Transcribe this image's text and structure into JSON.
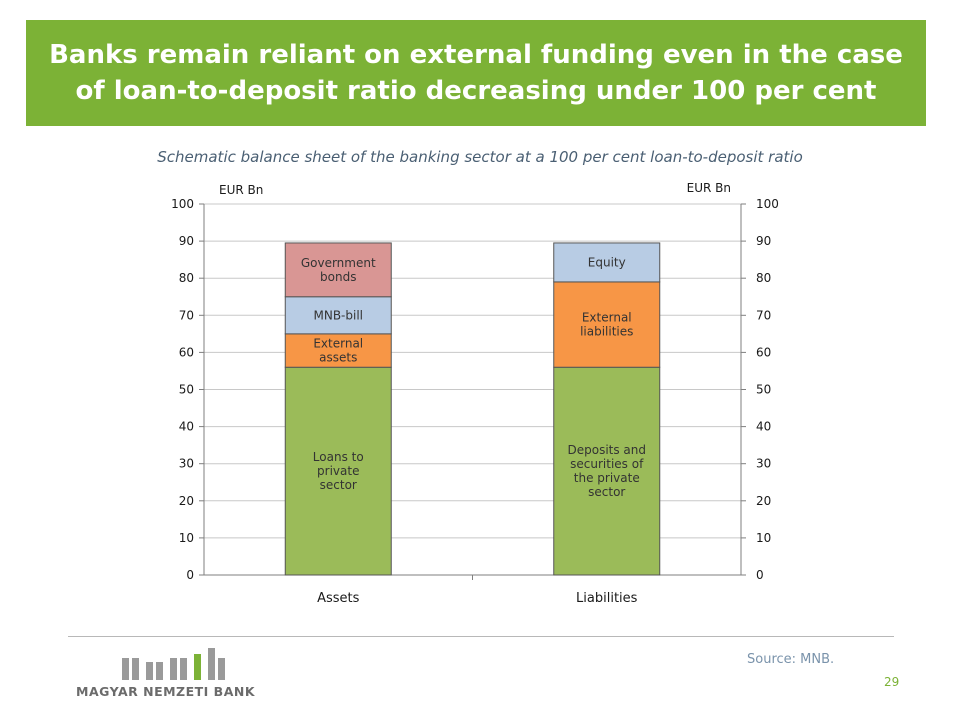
{
  "header": {
    "title": "Banks remain reliant on external funding even in the case of loan-to-deposit ratio decreasing under 100 per cent"
  },
  "subtitle": "Schematic balance sheet of the banking sector at a 100 per cent loan-to-deposit ratio",
  "chart_data": {
    "type": "bar",
    "stacked": true,
    "categories": [
      "Assets",
      "Liabilities"
    ],
    "left_axis_unit": "EUR Bn",
    "right_axis_unit": "EUR Bn",
    "ylim": [
      0,
      100
    ],
    "yticks": [
      0,
      10,
      20,
      30,
      40,
      50,
      60,
      70,
      80,
      90,
      100
    ],
    "gridlines": true,
    "stacks": [
      {
        "category": "Assets",
        "segments": [
          {
            "label": "Loans to private sector",
            "lines": [
              "Loans to",
              "private",
              "sector"
            ],
            "value": 56,
            "color": "#9bbb59"
          },
          {
            "label": "External assets",
            "lines": [
              "External",
              "assets"
            ],
            "value": 9,
            "color": "#f79646"
          },
          {
            "label": "MNB-bill",
            "lines": [
              "MNB-bill"
            ],
            "value": 10,
            "color": "#b8cce4"
          },
          {
            "label": "Government bonds",
            "lines": [
              "Government",
              "bonds"
            ],
            "value": 14.5,
            "color": "#d99694"
          }
        ]
      },
      {
        "category": "Liabilities",
        "segments": [
          {
            "label": "Deposits and securities of the private sector",
            "lines": [
              "Deposits and",
              "securities of",
              "the private",
              "sector"
            ],
            "value": 56,
            "color": "#9bbb59"
          },
          {
            "label": "External liabilities",
            "lines": [
              "External",
              "liabilities"
            ],
            "value": 23,
            "color": "#f79646"
          },
          {
            "label": "Equity",
            "lines": [
              "Equity"
            ],
            "value": 10.5,
            "color": "#b8cce4"
          }
        ]
      }
    ]
  },
  "footer": {
    "source": "Source: MNB.",
    "page_number": "29",
    "logo_text": "MAGYAR NEMZETI BANK"
  }
}
